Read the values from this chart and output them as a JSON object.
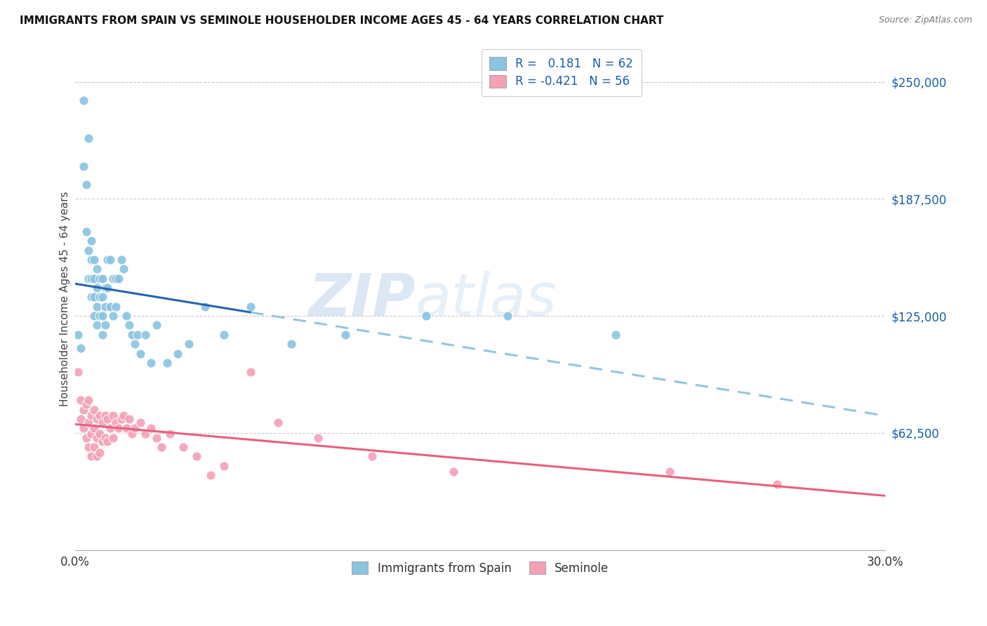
{
  "title": "IMMIGRANTS FROM SPAIN VS SEMINOLE HOUSEHOLDER INCOME AGES 45 - 64 YEARS CORRELATION CHART",
  "source": "Source: ZipAtlas.com",
  "ylabel": "Householder Income Ages 45 - 64 years",
  "ytick_labels": [
    "$62,500",
    "$125,000",
    "$187,500",
    "$250,000"
  ],
  "ytick_values": [
    62500,
    125000,
    187500,
    250000
  ],
  "ymin": 0,
  "ymax": 268000,
  "xmin": 0.0,
  "xmax": 0.3,
  "blue_color": "#89c4e1",
  "pink_color": "#f4a0b5",
  "blue_line_color": "#2565ae",
  "pink_line_color": "#e8607a",
  "blue_dash_color": "#93c6e0",
  "legend_blue_label": "R =   0.181   N = 62",
  "legend_pink_label": "R = -0.421   N = 56",
  "legend_label_color": "#1a5fa8",
  "watermark_zip": "ZIP",
  "watermark_atlas": "atlas",
  "blue_scatter_x": [
    0.001,
    0.002,
    0.003,
    0.003,
    0.004,
    0.004,
    0.005,
    0.005,
    0.005,
    0.006,
    0.006,
    0.006,
    0.006,
    0.007,
    0.007,
    0.007,
    0.007,
    0.008,
    0.008,
    0.008,
    0.008,
    0.009,
    0.009,
    0.009,
    0.01,
    0.01,
    0.01,
    0.01,
    0.011,
    0.011,
    0.011,
    0.012,
    0.012,
    0.013,
    0.013,
    0.014,
    0.014,
    0.015,
    0.015,
    0.016,
    0.017,
    0.018,
    0.019,
    0.02,
    0.021,
    0.022,
    0.023,
    0.024,
    0.026,
    0.028,
    0.03,
    0.034,
    0.038,
    0.042,
    0.048,
    0.055,
    0.065,
    0.08,
    0.1,
    0.13,
    0.16,
    0.2
  ],
  "blue_scatter_y": [
    115000,
    108000,
    240000,
    205000,
    170000,
    195000,
    220000,
    160000,
    145000,
    165000,
    155000,
    145000,
    135000,
    155000,
    145000,
    135000,
    125000,
    150000,
    140000,
    130000,
    120000,
    145000,
    135000,
    125000,
    145000,
    135000,
    125000,
    115000,
    140000,
    130000,
    120000,
    155000,
    140000,
    155000,
    130000,
    145000,
    125000,
    145000,
    130000,
    145000,
    155000,
    150000,
    125000,
    120000,
    115000,
    110000,
    115000,
    105000,
    115000,
    100000,
    120000,
    100000,
    105000,
    110000,
    130000,
    115000,
    130000,
    110000,
    115000,
    125000,
    125000,
    115000
  ],
  "pink_scatter_x": [
    0.001,
    0.002,
    0.002,
    0.003,
    0.003,
    0.004,
    0.004,
    0.005,
    0.005,
    0.005,
    0.006,
    0.006,
    0.006,
    0.007,
    0.007,
    0.007,
    0.008,
    0.008,
    0.008,
    0.009,
    0.009,
    0.009,
    0.01,
    0.01,
    0.011,
    0.011,
    0.012,
    0.012,
    0.013,
    0.014,
    0.014,
    0.015,
    0.016,
    0.017,
    0.018,
    0.019,
    0.02,
    0.021,
    0.022,
    0.024,
    0.026,
    0.028,
    0.03,
    0.032,
    0.035,
    0.04,
    0.045,
    0.05,
    0.055,
    0.065,
    0.075,
    0.09,
    0.11,
    0.14,
    0.22,
    0.26
  ],
  "pink_scatter_y": [
    95000,
    80000,
    70000,
    75000,
    65000,
    78000,
    60000,
    80000,
    68000,
    55000,
    72000,
    62000,
    50000,
    75000,
    65000,
    55000,
    70000,
    60000,
    50000,
    72000,
    62000,
    52000,
    68000,
    58000,
    72000,
    60000,
    70000,
    58000,
    65000,
    72000,
    60000,
    68000,
    65000,
    70000,
    72000,
    65000,
    70000,
    62000,
    65000,
    68000,
    62000,
    65000,
    60000,
    55000,
    62000,
    55000,
    50000,
    40000,
    45000,
    95000,
    68000,
    60000,
    50000,
    42000,
    42000,
    35000
  ]
}
